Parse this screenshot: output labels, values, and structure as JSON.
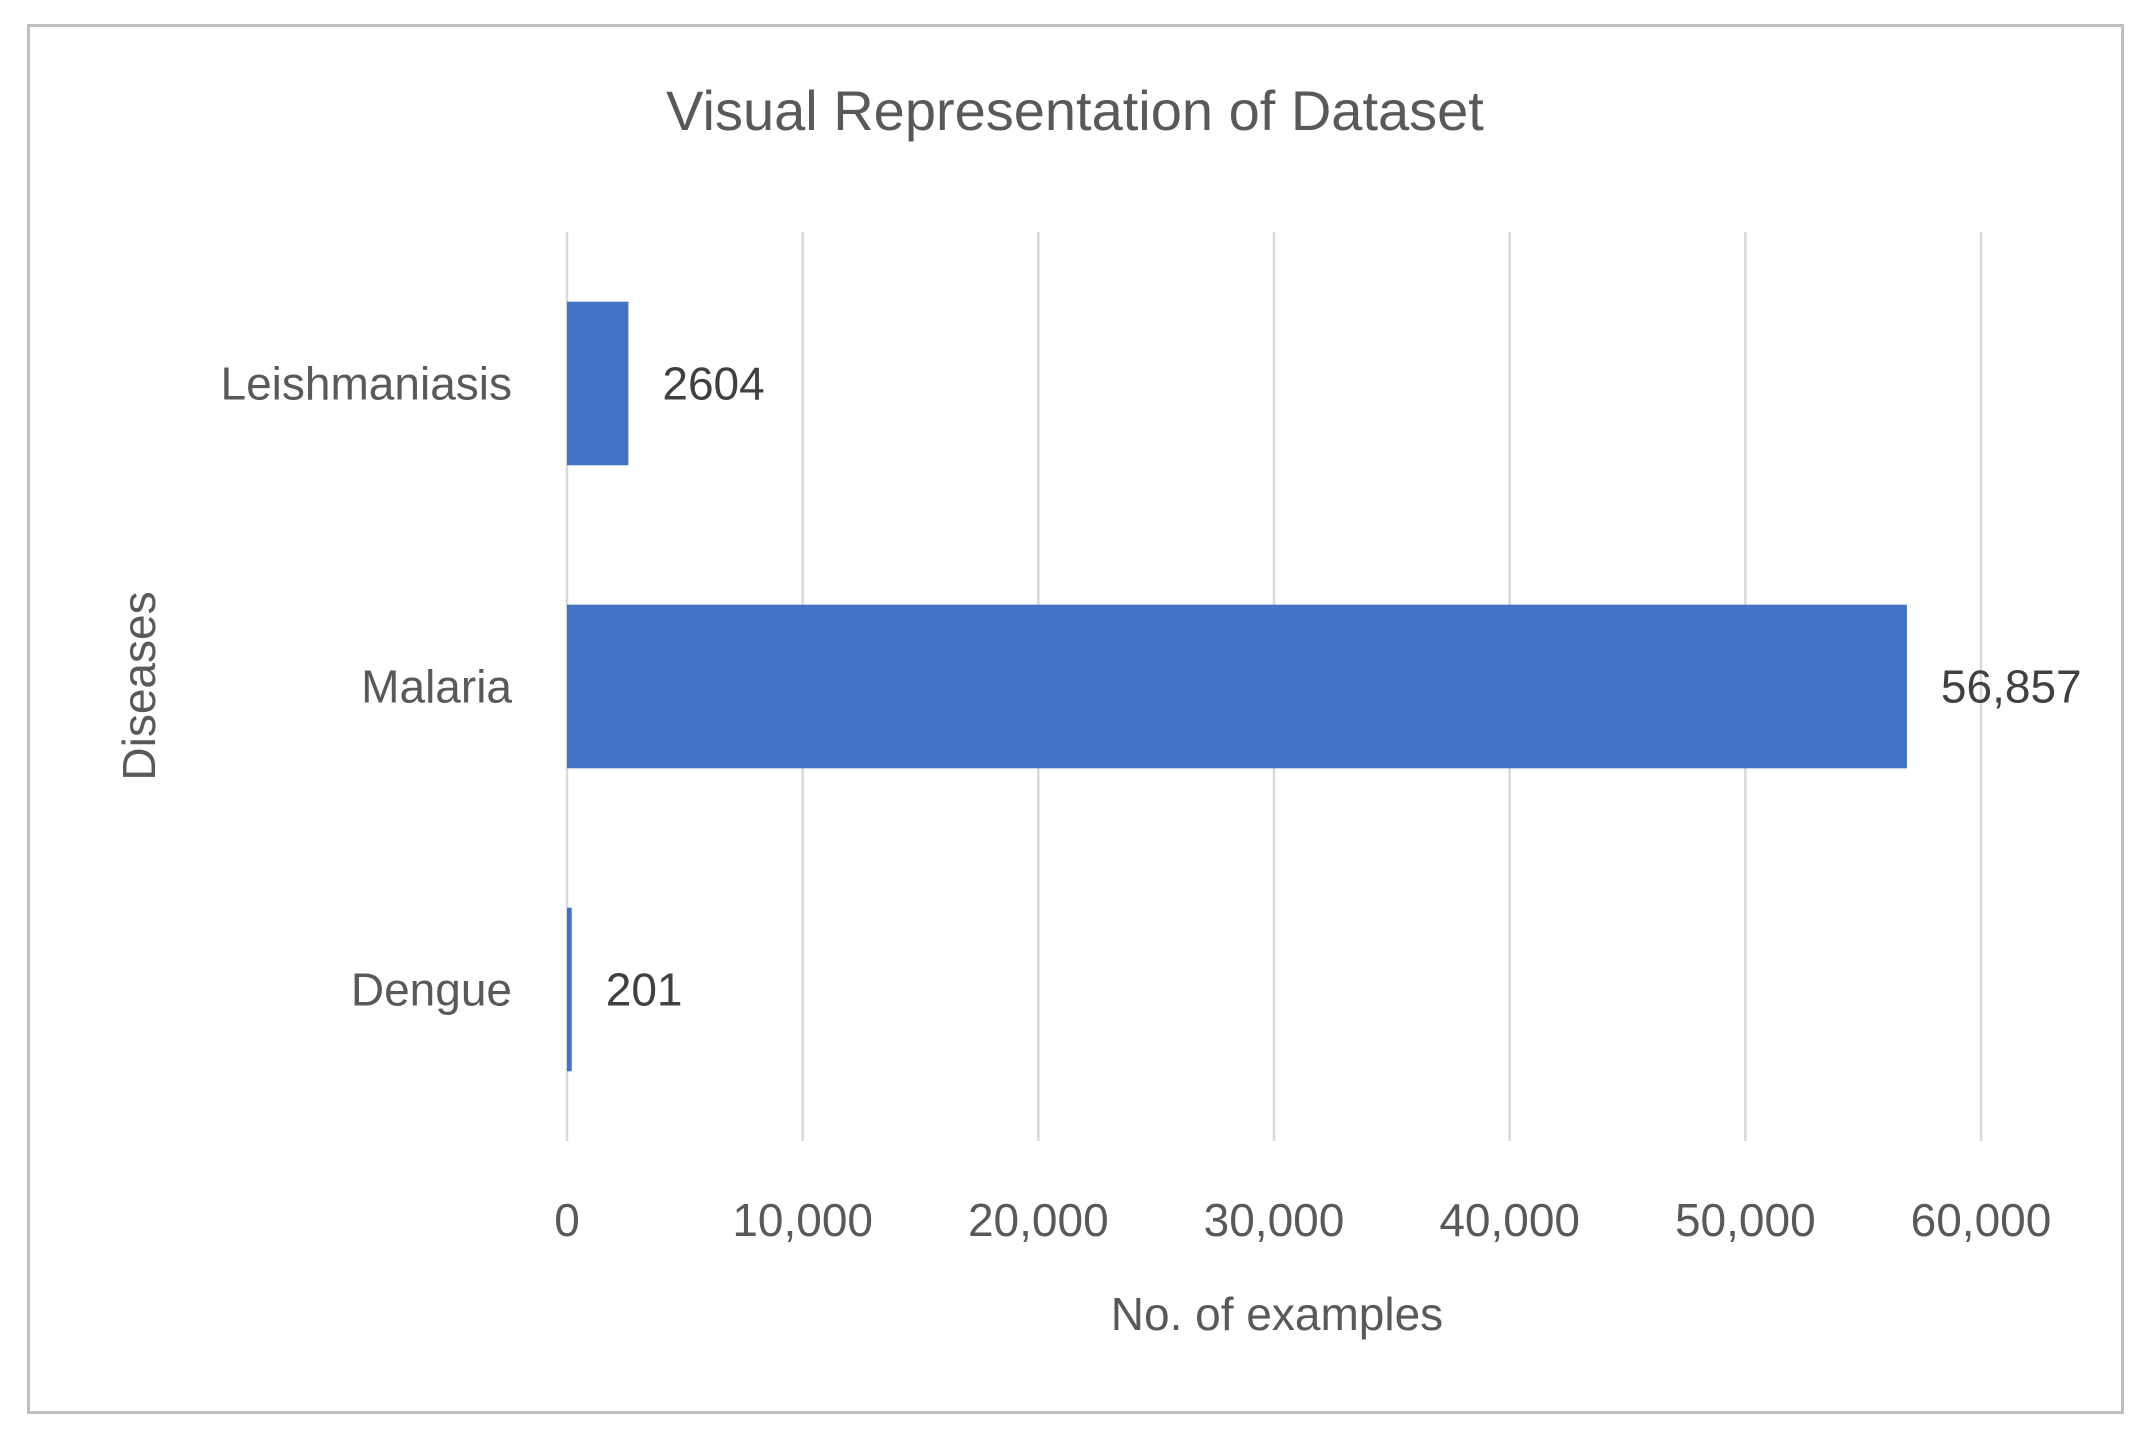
{
  "chart_data": {
    "type": "bar",
    "orientation": "horizontal",
    "title": "Visual Representation of Dataset",
    "xlabel": "No. of examples",
    "ylabel": "Diseases",
    "categories": [
      "Leishmaniasis",
      "Malaria",
      "Dengue"
    ],
    "values": [
      2604,
      56857,
      201
    ],
    "data_labels": [
      "2604",
      "56,857",
      "201"
    ],
    "xlim": [
      0,
      60000
    ],
    "xticks": [
      0,
      10000,
      20000,
      30000,
      40000,
      50000,
      60000
    ],
    "xtick_labels": [
      "0",
      "10,000",
      "20,000",
      "30,000",
      "40,000",
      "50,000",
      "60,000"
    ],
    "grid": "vertical",
    "legend": "none",
    "bar_color": "#4472c4",
    "grid_color": "#d9d9d9"
  }
}
